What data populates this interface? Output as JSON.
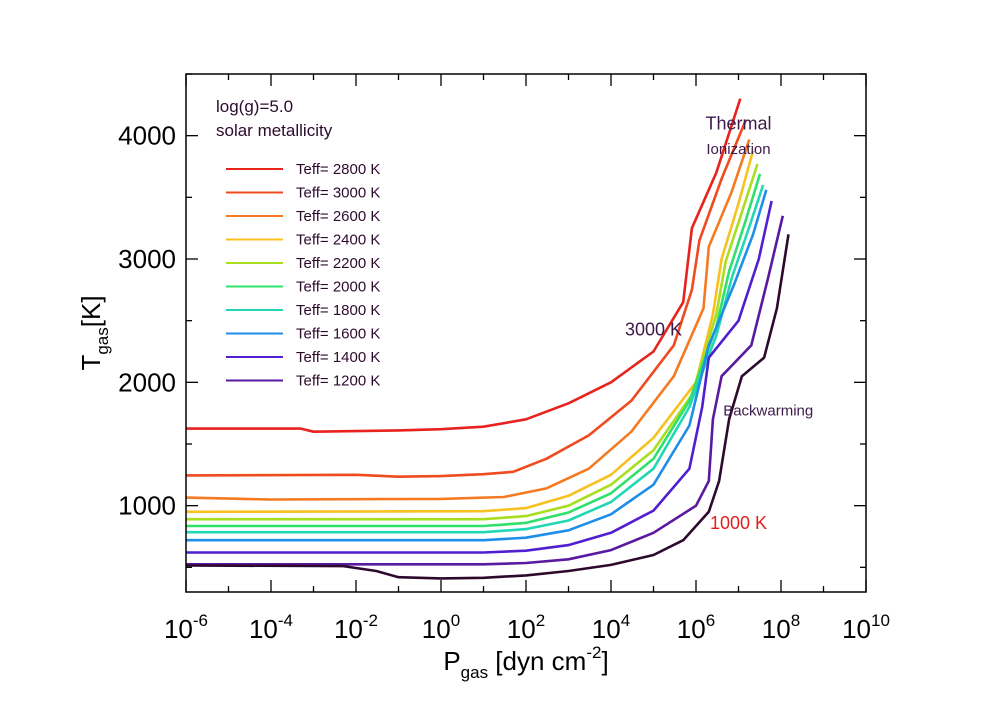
{
  "chart_data": {
    "type": "line",
    "xlabel": "P",
    "xlabel_sub": "gas",
    "xlabel_unit": "[dyn cm",
    "xlabel_unit_sup": "-2",
    "xlabel_close": "]",
    "ylabel": "T",
    "ylabel_sub": "gas",
    "ylabel_unit": "[K]",
    "x_scale": "log",
    "xlim": [
      1e-06,
      10000000000.0
    ],
    "ylim": [
      300,
      4500
    ],
    "x_ticks": [
      {
        "base": "10",
        "exp": "-6"
      },
      {
        "base": "10",
        "exp": "-4"
      },
      {
        "base": "10",
        "exp": "-2"
      },
      {
        "base": "10",
        "exp": "0"
      },
      {
        "base": "10",
        "exp": "2"
      },
      {
        "base": "10",
        "exp": "4"
      },
      {
        "base": "10",
        "exp": "6"
      },
      {
        "base": "10",
        "exp": "8"
      },
      {
        "base": "10",
        "exp": "10"
      }
    ],
    "y_ticks": [
      "1000",
      "2000",
      "3000",
      "4000"
    ],
    "legend_header": [
      "log(g)=5.0",
      "solar metallicity"
    ],
    "legend_position": "top-left",
    "grid": false,
    "annotations": [
      {
        "text": "Thermal",
        "x": 10000000.0,
        "y": 4050,
        "color": "#3d1a4a"
      },
      {
        "text": "Ionization",
        "x": 10000000.0,
        "y": 3850,
        "color": "#3d1a4a"
      },
      {
        "text": "3000 K",
        "x": 100000.0,
        "y": 2380,
        "color": "#3d1a4a"
      },
      {
        "text": "Backwarming",
        "x": 50000000.0,
        "y": 1730,
        "color": "#3d1a4a"
      },
      {
        "text": "1000 K",
        "x": 10000000.0,
        "y": 810,
        "color": "#e02020"
      }
    ],
    "series": [
      {
        "name": "Teff= 2800 K",
        "color": "#e8231d",
        "points": [
          [
            1e-06,
            1625
          ],
          [
            0.0005,
            1625
          ],
          [
            0.001,
            1600
          ],
          [
            0.1,
            1610
          ],
          [
            1,
            1620
          ],
          [
            10,
            1640
          ],
          [
            100,
            1700
          ],
          [
            1000.0,
            1830
          ],
          [
            10000.0,
            2000
          ],
          [
            100000.0,
            2250
          ],
          [
            500000.0,
            2650
          ],
          [
            800000.0,
            3250
          ],
          [
            3000000.0,
            3700
          ],
          [
            11000000.0,
            4300
          ]
        ]
      },
      {
        "name": "Teff= 3000 K",
        "color": "#f04a1f",
        "points": [
          [
            1e-06,
            1245
          ],
          [
            0.01,
            1250
          ],
          [
            0.1,
            1235
          ],
          [
            1,
            1240
          ],
          [
            10,
            1255
          ],
          [
            50,
            1275
          ],
          [
            300,
            1380
          ],
          [
            3000.0,
            1570
          ],
          [
            30000.0,
            1850
          ],
          [
            300000.0,
            2300
          ],
          [
            800000.0,
            2750
          ],
          [
            1200000.0,
            3150
          ],
          [
            4000000.0,
            3650
          ],
          [
            15000000.0,
            4130
          ]
        ]
      },
      {
        "name": "Teff= 2600 K",
        "color": "#f57a22",
        "points": [
          [
            1e-06,
            1065
          ],
          [
            0.0001,
            1050
          ],
          [
            1,
            1055
          ],
          [
            30,
            1070
          ],
          [
            300,
            1140
          ],
          [
            3000.0,
            1300
          ],
          [
            30000.0,
            1600
          ],
          [
            300000.0,
            2050
          ],
          [
            1500000.0,
            2600
          ],
          [
            2000000.0,
            3100
          ],
          [
            7000000.0,
            3550
          ],
          [
            18000000.0,
            3970
          ]
        ]
      },
      {
        "name": "Teff= 2400 K",
        "color": "#f8c11f",
        "points": [
          [
            1e-06,
            950
          ],
          [
            10,
            955
          ],
          [
            100,
            980
          ],
          [
            1000.0,
            1080
          ],
          [
            10000.0,
            1250
          ],
          [
            100000.0,
            1550
          ],
          [
            1000000.0,
            2000
          ],
          [
            2500000.0,
            2550
          ],
          [
            4000000.0,
            3000
          ],
          [
            10000000.0,
            3450
          ],
          [
            22000000.0,
            3880
          ]
        ]
      },
      {
        "name": "Teff= 2200 K",
        "color": "#a8de1e",
        "points": [
          [
            1e-06,
            890
          ],
          [
            10,
            890
          ],
          [
            100,
            915
          ],
          [
            1000.0,
            1000
          ],
          [
            10000.0,
            1170
          ],
          [
            100000.0,
            1450
          ],
          [
            800000.0,
            1900
          ],
          [
            3000000.0,
            2550
          ],
          [
            5000000.0,
            2980
          ],
          [
            12000000.0,
            3380
          ],
          [
            28000000.0,
            3770
          ]
        ]
      },
      {
        "name": "Teff= 2000 K",
        "color": "#2fe06a",
        "points": [
          [
            1e-06,
            835
          ],
          [
            10,
            835
          ],
          [
            100,
            860
          ],
          [
            1000.0,
            945
          ],
          [
            10000.0,
            1100
          ],
          [
            100000.0,
            1380
          ],
          [
            700000.0,
            1850
          ],
          [
            3000000.0,
            2450
          ],
          [
            6000000.0,
            2900
          ],
          [
            15000000.0,
            3320
          ],
          [
            32000000.0,
            3690
          ]
        ]
      },
      {
        "name": "Teff= 1800 K",
        "color": "#22d8b4",
        "points": [
          [
            1e-06,
            785
          ],
          [
            10,
            785
          ],
          [
            100,
            810
          ],
          [
            1000.0,
            880
          ],
          [
            10000.0,
            1030
          ],
          [
            100000.0,
            1300
          ],
          [
            700000.0,
            1800
          ],
          [
            3000000.0,
            2380
          ],
          [
            7000000.0,
            2850
          ],
          [
            18000000.0,
            3260
          ],
          [
            38000000.0,
            3600
          ]
        ]
      },
      {
        "name": "Teff= 1600 K",
        "color": "#1f8ee8",
        "points": [
          [
            1e-06,
            720
          ],
          [
            10,
            720
          ],
          [
            100,
            740
          ],
          [
            1000.0,
            800
          ],
          [
            10000.0,
            930
          ],
          [
            100000.0,
            1170
          ],
          [
            700000.0,
            1650
          ],
          [
            2000000.0,
            2300
          ],
          [
            8000000.0,
            2800
          ],
          [
            22000000.0,
            3200
          ],
          [
            45000000.0,
            3560
          ]
        ]
      },
      {
        "name": "Teff= 1400 K",
        "color": "#4f1fd0",
        "points": [
          [
            1e-06,
            620
          ],
          [
            10,
            620
          ],
          [
            100,
            635
          ],
          [
            1000.0,
            680
          ],
          [
            10000.0,
            780
          ],
          [
            100000.0,
            960
          ],
          [
            700000.0,
            1300
          ],
          [
            1400000.0,
            1800
          ],
          [
            2000000.0,
            2200
          ],
          [
            10000000.0,
            2500
          ],
          [
            30000000.0,
            3000
          ],
          [
            60000000.0,
            3470
          ]
        ]
      },
      {
        "name": "Teff= 1200 K",
        "color": "#5a1aa0",
        "points": [
          [
            1e-06,
            525
          ],
          [
            10,
            525
          ],
          [
            100,
            535
          ],
          [
            1000.0,
            565
          ],
          [
            10000.0,
            640
          ],
          [
            100000.0,
            780
          ],
          [
            1000000.0,
            1000
          ],
          [
            2000000.0,
            1200
          ],
          [
            2500000.0,
            1700
          ],
          [
            4000000.0,
            2050
          ],
          [
            20000000.0,
            2300
          ],
          [
            50000000.0,
            2850
          ],
          [
            110000000.0,
            3350
          ]
        ]
      },
      {
        "name": "",
        "color": "#2d0a2d",
        "points": [
          [
            1e-06,
            515
          ],
          [
            0.005,
            510
          ],
          [
            0.03,
            470
          ],
          [
            0.1,
            420
          ],
          [
            1,
            410
          ],
          [
            10,
            415
          ],
          [
            100,
            435
          ],
          [
            1000.0,
            470
          ],
          [
            10000.0,
            520
          ],
          [
            100000.0,
            600
          ],
          [
            500000.0,
            720
          ],
          [
            2000000.0,
            950
          ],
          [
            3500000.0,
            1200
          ],
          [
            6000000.0,
            1700
          ],
          [
            12000000.0,
            2050
          ],
          [
            40000000.0,
            2200
          ],
          [
            80000000.0,
            2600
          ],
          [
            150000000.0,
            3200
          ]
        ]
      }
    ]
  }
}
